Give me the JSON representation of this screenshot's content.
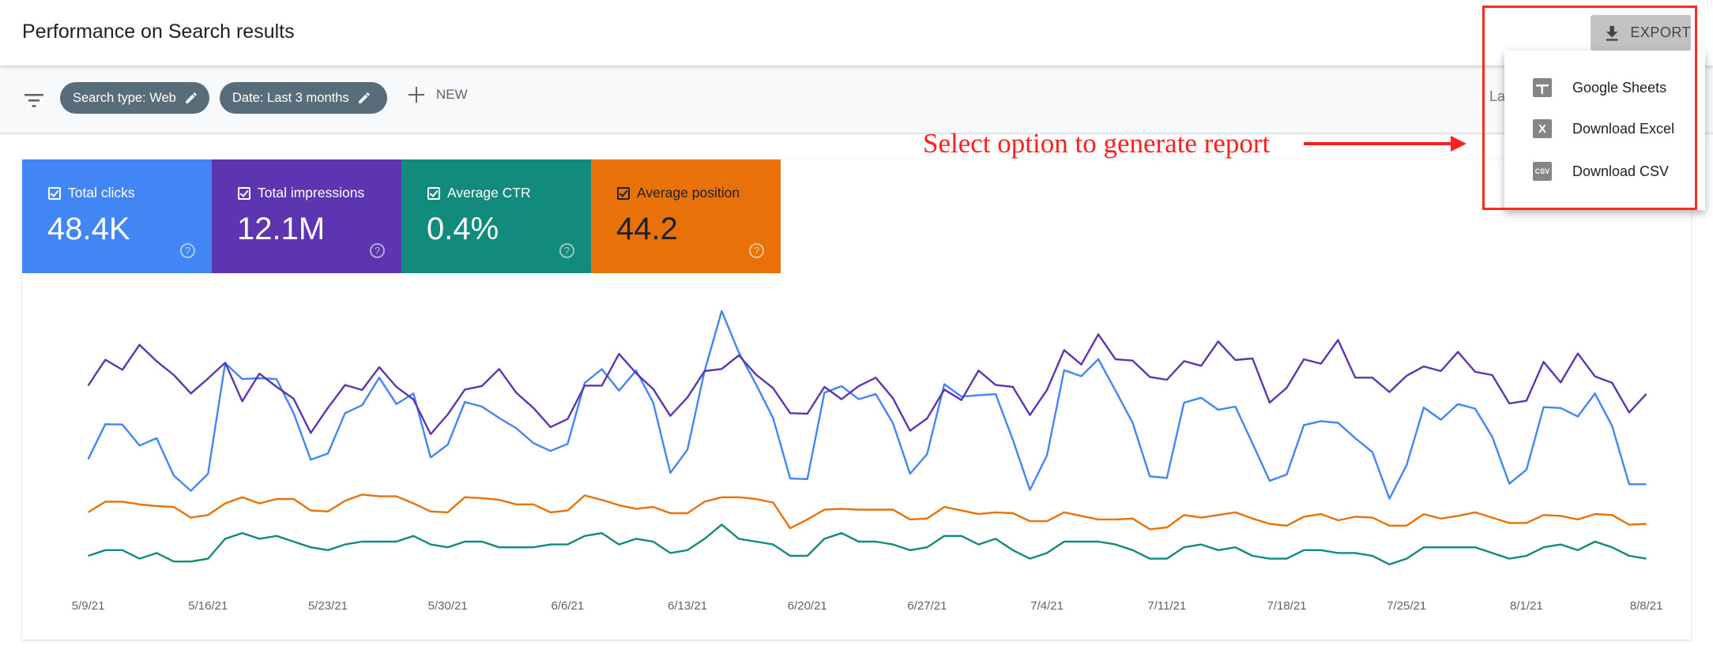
{
  "header": {
    "title": "Performance on Search results",
    "export_label": "EXPORT"
  },
  "filters": {
    "chips": [
      {
        "label": "Search type: Web"
      },
      {
        "label": "Date: Last 3 months"
      }
    ],
    "new_label": "NEW",
    "partial_text": "La"
  },
  "export_menu": {
    "items": [
      {
        "label": "Google Sheets",
        "icon": "google-sheets-icon",
        "glyph": "+"
      },
      {
        "label": "Download Excel",
        "icon": "excel-icon",
        "glyph": "X"
      },
      {
        "label": "Download CSV",
        "icon": "csv-icon",
        "glyph": "CSV"
      }
    ]
  },
  "annotation": {
    "text": "Select option to generate report",
    "color": "#ff1f1f"
  },
  "metrics": [
    {
      "label": "Total clicks",
      "value": "48.4K",
      "color": "#4285f4",
      "checked": true,
      "help": "?"
    },
    {
      "label": "Total impressions",
      "value": "12.1M",
      "color": "#5e35b1",
      "checked": true,
      "help": "?"
    },
    {
      "label": "Average CTR",
      "value": "0.4%",
      "color": "#128a7c",
      "checked": true,
      "help": "?"
    },
    {
      "label": "Average position",
      "value": "44.2",
      "color": "#e8710a",
      "checked": true,
      "help": "?"
    }
  ],
  "chart_data": {
    "type": "line",
    "x_start": "2021-05-09",
    "x_end": "2021-08-08",
    "x_ticks": [
      "5/9/21",
      "5/16/21",
      "5/23/21",
      "5/30/21",
      "6/6/21",
      "6/13/21",
      "6/20/21",
      "6/27/21",
      "7/4/21",
      "7/11/21",
      "7/18/21",
      "7/25/21",
      "8/1/21",
      "8/8/21"
    ],
    "grid": false,
    "series": [
      {
        "key": "clicks",
        "color": "#4285f4",
        "ylim": [
          0,
          1000
        ],
        "values": [
          440,
          563,
          562,
          488,
          514,
          382,
          329,
          389,
          778,
          722,
          725,
          722,
          602,
          438,
          460,
          602,
          630,
          727,
          634,
          671,
          446,
          491,
          641,
          625,
          585,
          549,
          497,
          469,
          494,
          708,
          757,
          681,
          752,
          639,
          392,
          474,
          750,
          961,
          815,
          704,
          585,
          372,
          370,
          674,
          697,
          651,
          669,
          567,
          389,
          458,
          704,
          660,
          665,
          669,
          509,
          332,
          454,
          753,
          732,
          792,
          681,
          568,
          380,
          374,
          639,
          656,
          614,
          625,
          495,
          364,
          386,
          560,
          574,
          568,
          514,
          465,
          301,
          419,
          622,
          579,
          634,
          618,
          519,
          354,
          403,
          623,
          620,
          590,
          671,
          557,
          352,
          352
        ]
      },
      {
        "key": "impressions",
        "color": "#5e35b1",
        "ylim": [
          0,
          200000
        ],
        "values": [
          139800,
          158000,
          150900,
          168500,
          156900,
          147200,
          134300,
          144800,
          155900,
          128700,
          148200,
          138900,
          130600,
          106500,
          124100,
          140200,
          136700,
          152800,
          138900,
          130000,
          105600,
          119500,
          137000,
          139500,
          151500,
          134800,
          124100,
          110600,
          116300,
          139800,
          139800,
          162100,
          148500,
          137400,
          118500,
          131500,
          150000,
          151500,
          161100,
          147600,
          138000,
          120400,
          120000,
          138900,
          130200,
          139500,
          145400,
          130900,
          108000,
          116700,
          137000,
          129600,
          150400,
          140200,
          138900,
          119100,
          136700,
          164800,
          154600,
          175900,
          158300,
          157400,
          145900,
          143900,
          157000,
          153700,
          170900,
          157800,
          158900,
          127800,
          138300,
          158300,
          155200,
          171900,
          145400,
          145400,
          135200,
          146700,
          153300,
          150000,
          163500,
          149500,
          147200,
          127200,
          129100,
          156500,
          142000,
          162400,
          146300,
          141700,
          120900,
          133900
        ]
      },
      {
        "key": "ctr",
        "color": "#128a7c",
        "ylim": [
          0.35,
          0.45
        ],
        "values": [
          0.36,
          0.362,
          0.362,
          0.359,
          0.361,
          0.358,
          0.358,
          0.359,
          0.366,
          0.368,
          0.366,
          0.367,
          0.365,
          0.363,
          0.362,
          0.364,
          0.365,
          0.365,
          0.365,
          0.367,
          0.364,
          0.363,
          0.365,
          0.365,
          0.363,
          0.363,
          0.363,
          0.364,
          0.364,
          0.367,
          0.368,
          0.364,
          0.366,
          0.365,
          0.361,
          0.362,
          0.366,
          0.371,
          0.366,
          0.365,
          0.364,
          0.36,
          0.36,
          0.366,
          0.368,
          0.365,
          0.365,
          0.364,
          0.362,
          0.363,
          0.367,
          0.367,
          0.364,
          0.366,
          0.362,
          0.359,
          0.361,
          0.365,
          0.365,
          0.365,
          0.364,
          0.362,
          0.359,
          0.359,
          0.363,
          0.364,
          0.362,
          0.363,
          0.36,
          0.359,
          0.359,
          0.362,
          0.362,
          0.361,
          0.361,
          0.36,
          0.357,
          0.359,
          0.363,
          0.363,
          0.363,
          0.363,
          0.361,
          0.359,
          0.36,
          0.363,
          0.364,
          0.362,
          0.365,
          0.363,
          0.36,
          0.359
        ]
      },
      {
        "key": "position",
        "color": "#e8710a",
        "ylim": [
          20,
          52
        ],
        "inverted": true,
        "values": [
          43.9,
          42.7,
          42.7,
          43.0,
          43.2,
          43.3,
          44.5,
          44.2,
          42.9,
          42.2,
          42.9,
          42.4,
          42.4,
          43.7,
          43.8,
          42.6,
          41.9,
          42.1,
          42.1,
          42.9,
          43.8,
          43.9,
          42.2,
          42.3,
          42.5,
          43.0,
          43.0,
          43.9,
          43.7,
          42.0,
          42.5,
          43.1,
          43.5,
          43.3,
          44.0,
          44.0,
          42.7,
          42.2,
          42.2,
          42.4,
          42.8,
          45.7,
          44.7,
          43.6,
          43.5,
          43.6,
          43.6,
          43.6,
          44.7,
          44.6,
          43.3,
          43.7,
          44.1,
          43.9,
          44.0,
          44.9,
          44.9,
          43.9,
          44.3,
          44.7,
          44.7,
          44.6,
          45.8,
          45.6,
          44.2,
          44.5,
          44.2,
          43.9,
          44.6,
          45.2,
          45.4,
          44.4,
          44.1,
          44.8,
          44.4,
          44.5,
          45.4,
          45.4,
          44.1,
          44.6,
          44.3,
          43.9,
          44.5,
          45.1,
          45.1,
          44.2,
          44.3,
          44.7,
          44.1,
          44.2,
          45.3,
          45.2
        ]
      }
    ]
  }
}
